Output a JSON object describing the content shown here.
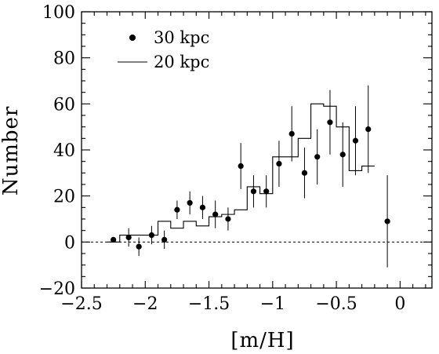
{
  "chart_data": {
    "type": "scatter",
    "xlabel": "[m/H]",
    "ylabel": "Number",
    "xlim": [
      -2.5,
      0.25
    ],
    "ylim": [
      -20,
      100
    ],
    "xticks": [
      -2.5,
      -2,
      -1.5,
      -1,
      -0.5,
      0
    ],
    "xtick_labels": [
      "−2.5",
      "−2",
      "−1.5",
      "−1",
      "−0.5",
      "0"
    ],
    "yticks": [
      -20,
      0,
      20,
      40,
      60,
      80,
      100
    ],
    "ytick_labels": [
      "−20",
      "0",
      "20",
      "40",
      "60",
      "80",
      "100"
    ],
    "zero_line": 0,
    "legend_position": "top-left",
    "series": [
      {
        "name": "30 kpc",
        "kind": "points_with_errorbars",
        "x": [
          -2.25,
          -2.13,
          -2.05,
          -1.95,
          -1.85,
          -1.75,
          -1.65,
          -1.55,
          -1.45,
          -1.35,
          -1.25,
          -1.15,
          -1.05,
          -0.95,
          -0.85,
          -0.75,
          -0.65,
          -0.55,
          -0.45,
          -0.35,
          -0.25,
          -0.1
        ],
        "y": [
          1,
          2,
          -2,
          3,
          1,
          14,
          17,
          15,
          12,
          10,
          33,
          22,
          22,
          34,
          47,
          30,
          37,
          52,
          38,
          44,
          49,
          9
        ],
        "yerr": [
          1,
          4,
          4,
          4,
          4,
          4,
          5,
          5,
          6,
          5,
          10,
          7,
          7,
          10,
          12,
          11,
          12,
          14,
          14,
          15,
          19,
          20
        ]
      },
      {
        "name": "20 kpc",
        "kind": "step",
        "edges": [
          -2.3,
          -2.2,
          -2.0,
          -1.9,
          -1.8,
          -1.7,
          -1.6,
          -1.5,
          -1.4,
          -1.3,
          -1.2,
          -1.1,
          -1.0,
          -0.9,
          -0.8,
          -0.7,
          -0.6,
          -0.5,
          -0.4,
          -0.3,
          -0.2
        ],
        "values": [
          0,
          3,
          3,
          9,
          6,
          9,
          7,
          11,
          12,
          14,
          24,
          21,
          37,
          37,
          45,
          60,
          59,
          50,
          31,
          33
        ]
      }
    ]
  }
}
